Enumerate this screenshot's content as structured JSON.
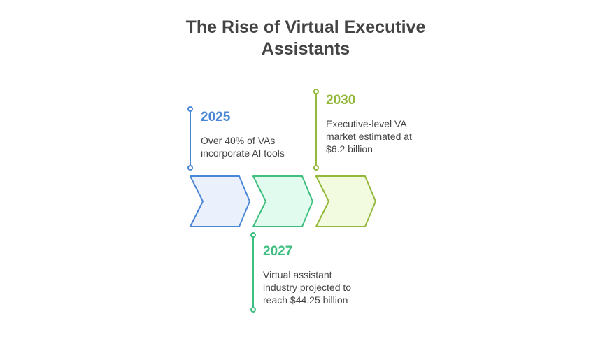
{
  "title": "The Rise of Virtual Executive Assistants",
  "colors": {
    "blue": "#4a86d6",
    "blue_fill": "#eaf1fd",
    "green": "#3fbf7f",
    "green_fill": "#e2fbef",
    "lime": "#93b83a",
    "lime_fill": "#f2fadf",
    "text": "#444444"
  },
  "milestones": [
    {
      "year": "2025",
      "description": "Over 40% of VAs incorporate AI tools",
      "color": "#4a86d6",
      "fill": "#eaf1fd",
      "position": "above"
    },
    {
      "year": "2027",
      "description": "Virtual assistant industry projected to reach $44.25 billion",
      "color": "#3fbf7f",
      "fill": "#e2fbef",
      "position": "below"
    },
    {
      "year": "2030",
      "description": "Executive-level VA market estimated at $6.2 billion",
      "color": "#93b83a",
      "fill": "#f2fadf",
      "position": "above"
    }
  ]
}
